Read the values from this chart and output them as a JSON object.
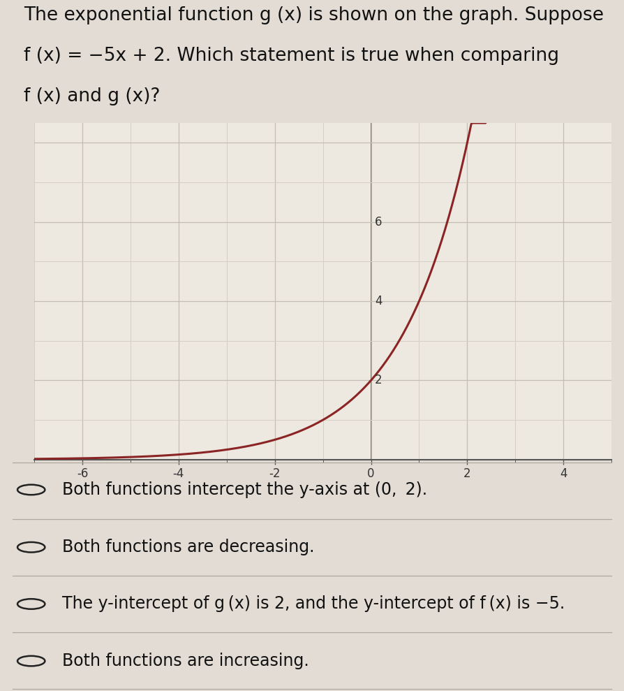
{
  "graph_bg": "#ede8e0",
  "graph_grid_minor_color": "#d5cec4",
  "graph_grid_major_color": "#c5bdb2",
  "curve_color": "#8b2525",
  "curve_linewidth": 2.2,
  "x_min": -7,
  "x_max": 5,
  "y_min": 0,
  "y_max": 8.5,
  "x_ticks_labeled": [
    -6,
    -4,
    -2,
    0,
    2,
    4
  ],
  "y_ticks_labeled": [
    2,
    4,
    6
  ],
  "choices": [
    "Both functions intercept the y-axis at (0,  2).",
    "Both functions are decreasing.",
    "The y-intercept of g (x) is 2, and the y-intercept of f (x) is −5.",
    "Both functions are increasing."
  ],
  "choice_fontsize": 17,
  "title_fontsize": 19,
  "bg_color": "#e2dcd4",
  "text_color": "#111111",
  "divider_color": "#b0a89e",
  "axis_line_color": "#555555",
  "tick_label_color": "#333333"
}
